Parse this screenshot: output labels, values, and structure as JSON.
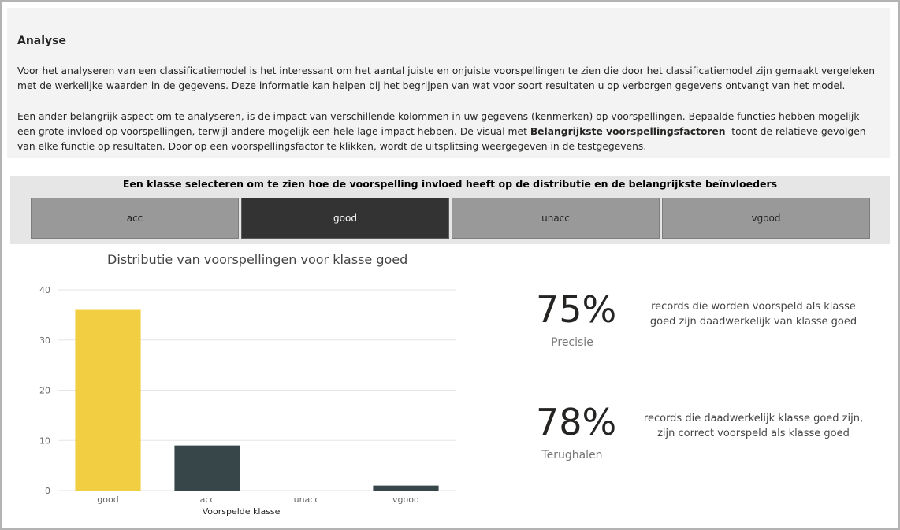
{
  "analysis": {
    "title": "Analyse",
    "paragraph1": "Voor het analyseren van een classificatiemodel is het interessant om het aantal juiste en onjuiste voorspellingen te zien die door het classificatiemodel zijn gemaakt vergeleken met de werkelijke waarden in de gegevens. Deze informatie kan helpen bij het begrijpen van wat voor soort resultaten u op verborgen gegevens ontvangt van het model.",
    "paragraph2_before": "Een ander belangrijk aspect om te analyseren, is de impact van verschillende kolommen in uw gegevens (kenmerken) op voorspellingen. Bepaalde functies hebben mogelijk een grote invloed op voorspellingen, terwijl andere mogelijk een hele lage impact hebben. De visual met ",
    "paragraph2_bold": "Belangrijkste voorspellingsfactoren",
    "paragraph2_after": "  toont de relatieve gevolgen van elke functie op resultaten. Door op een voorspellingsfactor te klikken, wordt de uitsplitsing weergegeven in de testgegevens."
  },
  "selector": {
    "title": "Een klasse selecteren om te zien hoe de voorspelling invloed heeft op de distributie en de belangrijkste beïnvloeders",
    "classes": [
      "acc",
      "good",
      "unacc",
      "vgood"
    ],
    "selected": "good"
  },
  "chart_data": {
    "type": "bar",
    "title": "Distributie van voorspellingen voor klasse goed",
    "categories": [
      "good",
      "acc",
      "unacc",
      "vgood"
    ],
    "values": [
      36,
      9,
      0,
      1
    ],
    "colors": [
      "#f2ce42",
      "#374649",
      "#374649",
      "#374649"
    ],
    "xlabel": "Voorspelde klasse",
    "ylabel": "",
    "ylim": [
      0,
      40
    ],
    "yticks": [
      0,
      10,
      20,
      30,
      40
    ],
    "grid": true
  },
  "kpis": {
    "precision": {
      "value": "75%",
      "label": "Precisie",
      "description_line1": "records die worden voorspeld als klasse",
      "description_line2": "goed zijn daadwerkelijk van klasse goed"
    },
    "recall": {
      "value": "78%",
      "label": "Terughalen",
      "description_line1": "records die daadwerkelijk klasse goed zijn,",
      "description_line2": "zijn correct voorspeld als klasse goed"
    }
  }
}
